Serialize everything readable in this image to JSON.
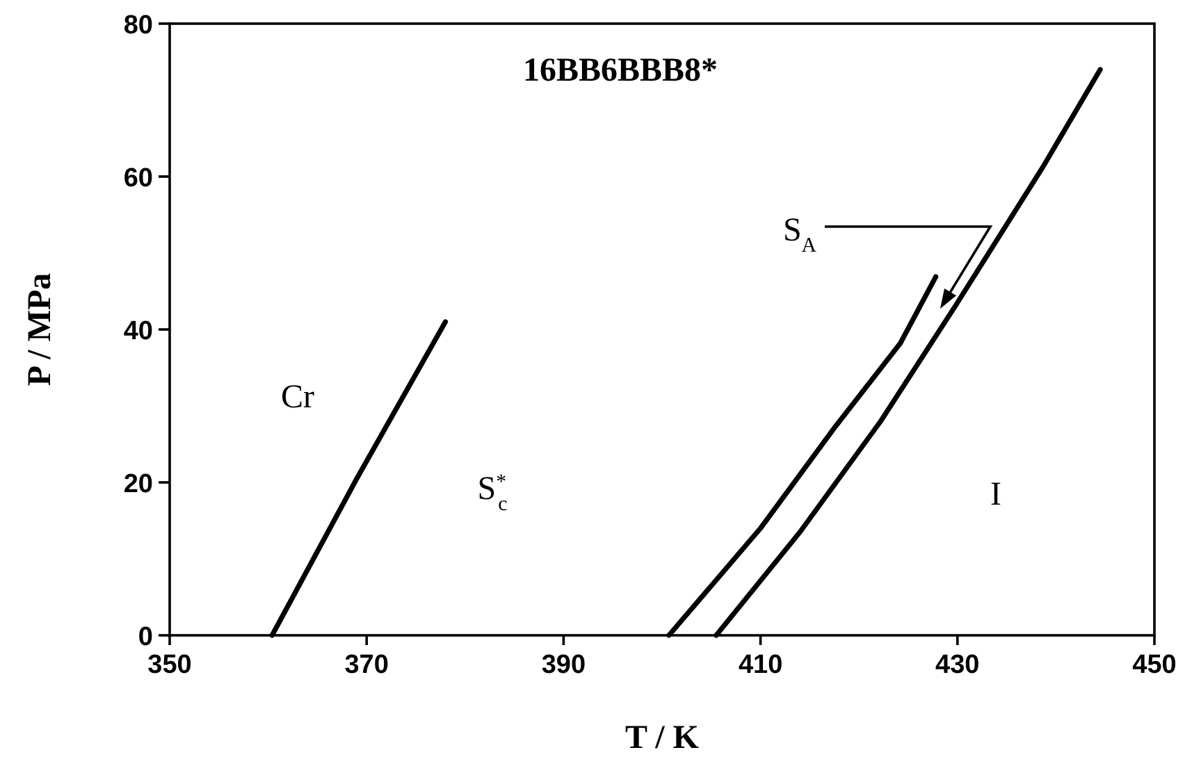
{
  "chart_data": {
    "type": "line",
    "title": "16BB6BBB8*",
    "xlabel": "T / K",
    "ylabel": "P / MPa",
    "xlim": [
      350,
      450
    ],
    "ylim": [
      0,
      80
    ],
    "xticks": [
      350,
      370,
      390,
      410,
      430,
      450
    ],
    "yticks": [
      0,
      20,
      40,
      60,
      80
    ],
    "grid": false,
    "marker": "none",
    "line_style": "solid",
    "series": [
      {
        "color": "#000000",
        "x": [
          360.4,
          369,
          378
        ],
        "values": [
          0,
          20.5,
          41
        ]
      },
      {
        "color": "#000000",
        "x": [
          400.7,
          410,
          417.6,
          424.2,
          427.8
        ],
        "values": [
          0,
          14,
          27.3,
          38.2,
          46.9
        ]
      },
      {
        "color": "#000000",
        "x": [
          405.5,
          414,
          422.2,
          429.8,
          438.7,
          444.5
        ],
        "values": [
          0,
          13.5,
          28,
          43.1,
          61.3,
          74
        ]
      }
    ],
    "annotations": [
      "Cr",
      "S$^{*}$$_{c}$",
      "S$_{A}$",
      "I"
    ]
  }
}
